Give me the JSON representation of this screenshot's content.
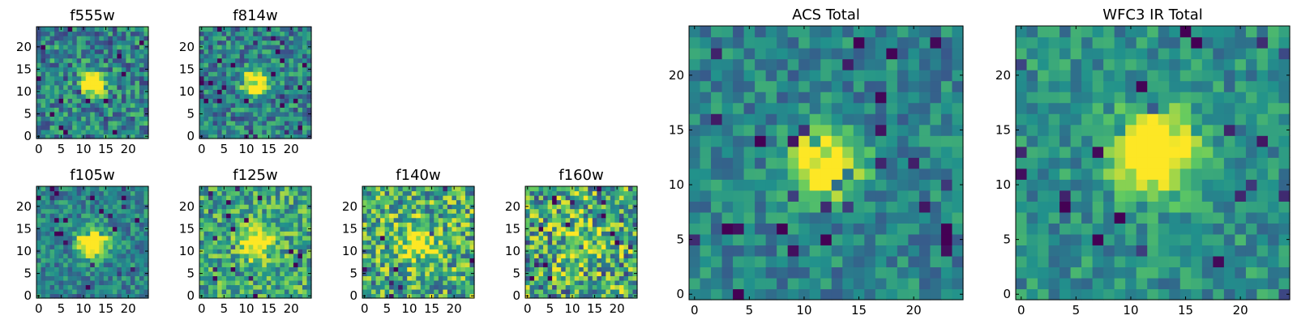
{
  "chart_data": [
    {
      "type": "heatmap",
      "title": "f555w",
      "grid": false,
      "xlim": [
        0,
        25
      ],
      "ylim": [
        0,
        25
      ],
      "xticks": [
        0,
        5,
        10,
        15,
        20
      ],
      "yticks": [
        0,
        5,
        10,
        15,
        20
      ],
      "source_x": 12,
      "source_y": 12,
      "source_radius": 1.8,
      "source_peak": 1.0,
      "noise": 0.55,
      "base": 0.45,
      "seed": 3
    },
    {
      "type": "heatmap",
      "title": "f814w",
      "grid": false,
      "xlim": [
        0,
        25
      ],
      "ylim": [
        0,
        25
      ],
      "xticks": [
        0,
        5,
        10,
        15,
        20
      ],
      "yticks": [
        0,
        5,
        10,
        15,
        20
      ],
      "source_x": 12,
      "source_y": 12,
      "source_radius": 1.9,
      "source_peak": 1.0,
      "noise": 0.5,
      "base": 0.45,
      "seed": 7
    },
    {
      "type": "heatmap",
      "title": "f105w",
      "grid": false,
      "xlim": [
        0,
        25
      ],
      "ylim": [
        0,
        25
      ],
      "xticks": [
        0,
        5,
        10,
        15,
        20
      ],
      "yticks": [
        0,
        5,
        10,
        15,
        20
      ],
      "source_x": 12,
      "source_y": 12,
      "source_radius": 2.2,
      "source_peak": 1.0,
      "noise": 0.4,
      "base": 0.45,
      "seed": 11
    },
    {
      "type": "heatmap",
      "title": "f125w",
      "grid": false,
      "xlim": [
        0,
        25
      ],
      "ylim": [
        0,
        25
      ],
      "xticks": [
        0,
        5,
        10,
        15,
        20
      ],
      "yticks": [
        0,
        5,
        10,
        15,
        20
      ],
      "source_x": 12,
      "source_y": 12,
      "source_radius": 2.6,
      "source_peak": 0.55,
      "noise": 0.55,
      "base": 0.6,
      "seed": 19
    },
    {
      "type": "heatmap",
      "title": "f140w",
      "grid": false,
      "xlim": [
        0,
        25
      ],
      "ylim": [
        0,
        25
      ],
      "xticks": [
        0,
        5,
        10,
        15,
        20
      ],
      "yticks": [
        0,
        5,
        10,
        15,
        20
      ],
      "source_x": 12,
      "source_y": 12,
      "source_radius": 2.8,
      "source_peak": 0.45,
      "noise": 0.7,
      "base": 0.62,
      "seed": 23
    },
    {
      "type": "heatmap",
      "title": "f160w",
      "grid": false,
      "xlim": [
        0,
        25
      ],
      "ylim": [
        0,
        25
      ],
      "xticks": [
        0,
        5,
        10,
        15,
        20
      ],
      "yticks": [
        0,
        5,
        10,
        15,
        20
      ],
      "source_x": 12,
      "source_y": 12,
      "source_radius": 2.8,
      "source_peak": 0.35,
      "noise": 0.8,
      "base": 0.6,
      "seed": 31
    },
    {
      "type": "heatmap",
      "title": "ACS Total",
      "grid": false,
      "xlim": [
        0,
        25
      ],
      "ylim": [
        0,
        25
      ],
      "xticks": [
        0,
        5,
        10,
        15,
        20
      ],
      "yticks": [
        0,
        5,
        10,
        15,
        20
      ],
      "source_x": 12,
      "source_y": 12,
      "source_radius": 2.0,
      "source_peak": 1.0,
      "noise": 0.35,
      "base": 0.45,
      "seed": 41
    },
    {
      "type": "heatmap",
      "title": "WFC3 IR Total",
      "grid": false,
      "xlim": [
        0,
        25
      ],
      "ylim": [
        0,
        25
      ],
      "xticks": [
        0,
        5,
        10,
        15,
        20
      ],
      "yticks": [
        0,
        5,
        10,
        15,
        20
      ],
      "source_x": 12,
      "source_y": 13,
      "source_radius": 2.4,
      "source_peak": 0.95,
      "noise": 0.35,
      "base": 0.5,
      "seed": 53
    }
  ],
  "colormap": [
    "#440154",
    "#3b528b",
    "#21918c",
    "#5ec962",
    "#fde725"
  ]
}
